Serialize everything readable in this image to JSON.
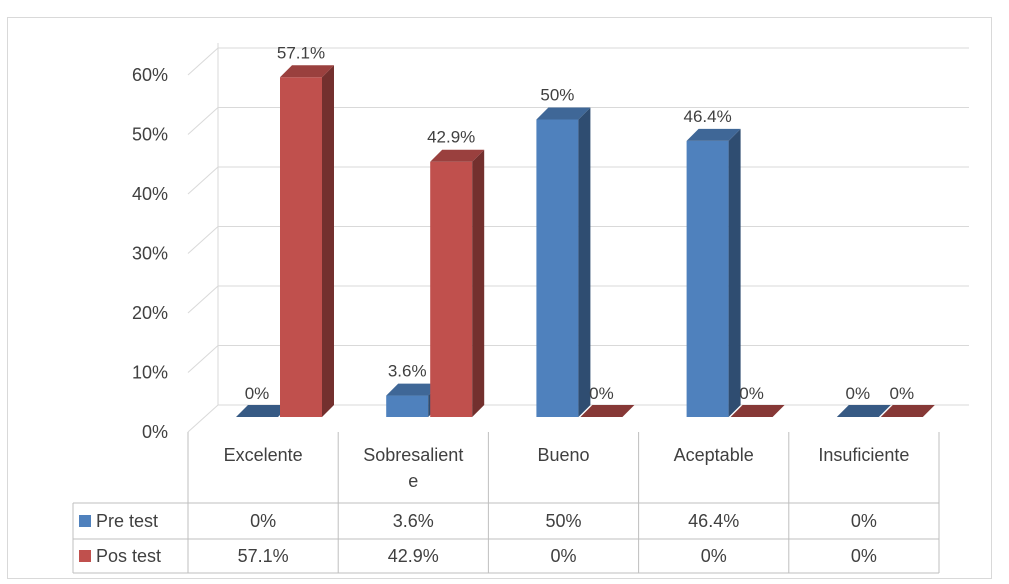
{
  "chart_data": {
    "type": "bar",
    "style": "3d-clustered-column-with-data-table",
    "categories": [
      "Excelente",
      "Sobresaliente",
      "Bueno",
      "Aceptable",
      "Insuficiente"
    ],
    "category_label_lines": [
      [
        "Excelente"
      ],
      [
        "Sobresalient",
        "e"
      ],
      [
        "Bueno"
      ],
      [
        "Aceptable"
      ],
      [
        "Insuficiente"
      ]
    ],
    "series": [
      {
        "name": "Pre test",
        "values": [
          0,
          3.6,
          50,
          46.4,
          0
        ],
        "labels": [
          "0%",
          "3.6%",
          "50%",
          "46.4%",
          "0%"
        ],
        "color": "#4f81bd"
      },
      {
        "name": "Pos test",
        "values": [
          57.1,
          42.9,
          0,
          0,
          0
        ],
        "labels": [
          "57.1%",
          "42.9%",
          "0%",
          "0%",
          "0%"
        ],
        "color": "#c0504d"
      }
    ],
    "y_ticks": [
      "0%",
      "10%",
      "20%",
      "30%",
      "40%",
      "50%",
      "60%"
    ],
    "ylim": [
      0,
      60
    ],
    "grid": true,
    "legend": "data-table"
  }
}
